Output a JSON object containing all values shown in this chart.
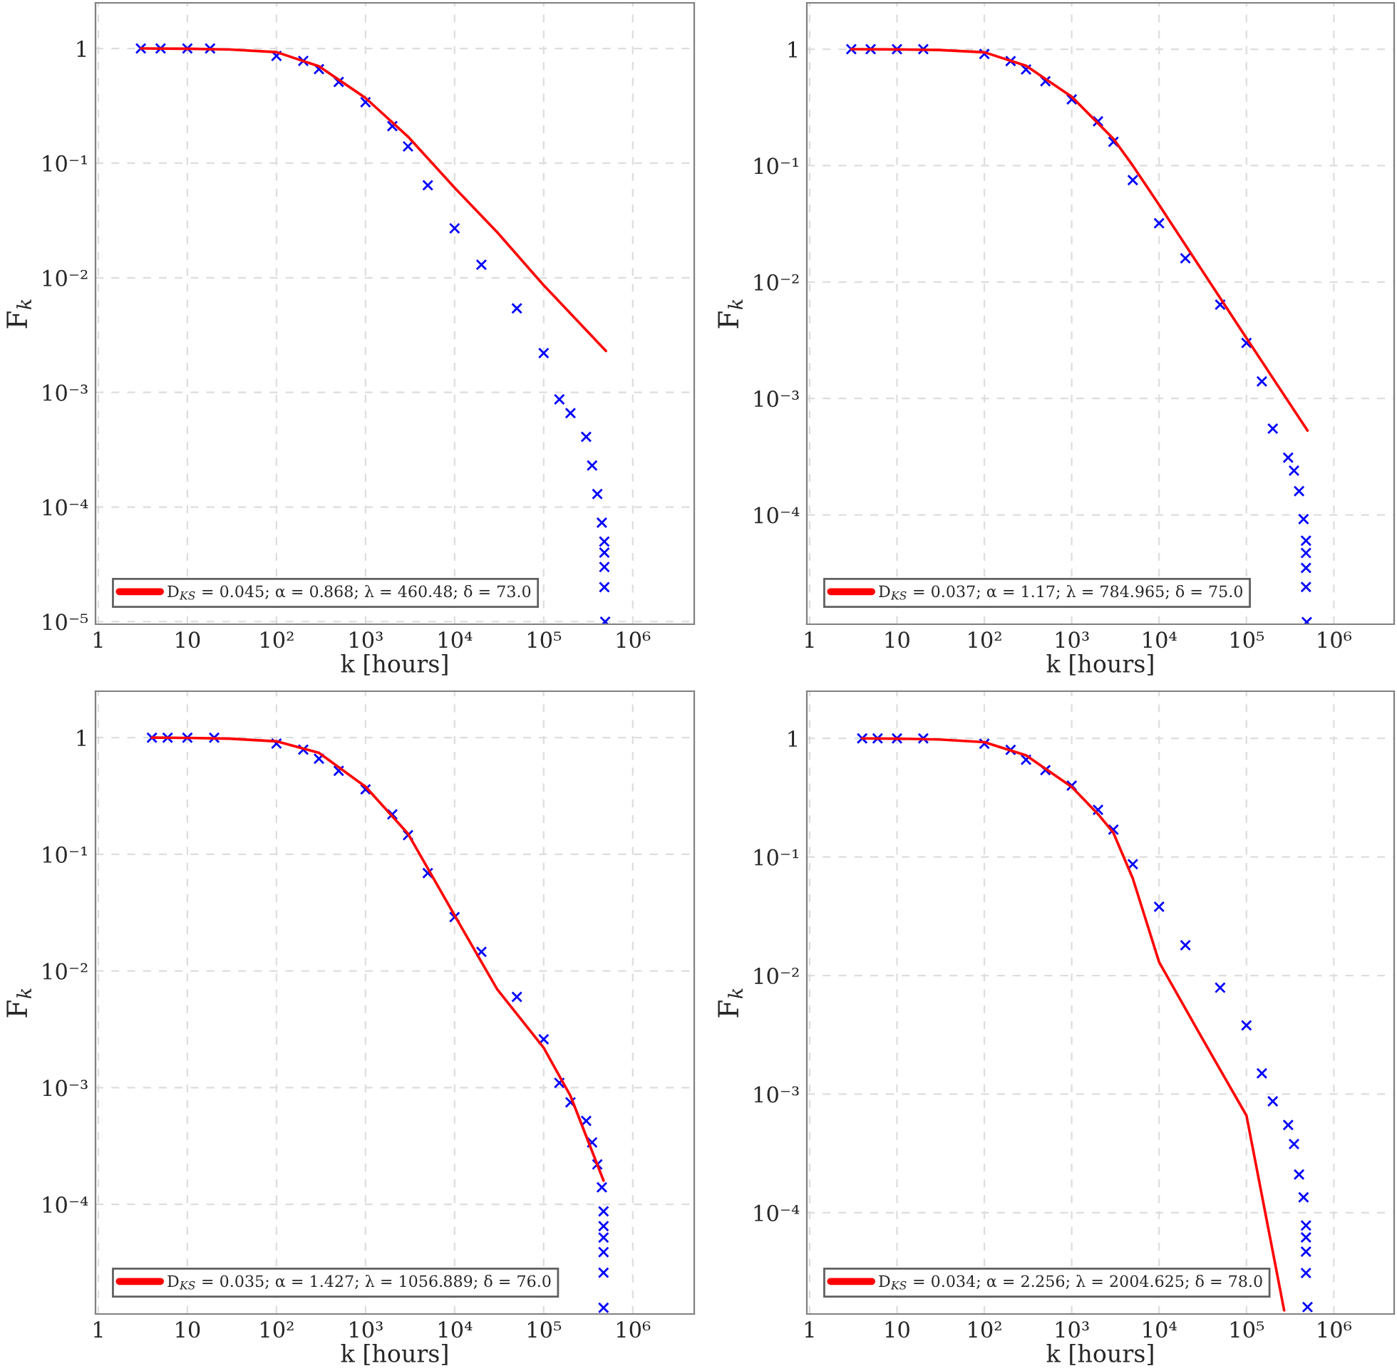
{
  "chart_data": [
    {
      "type": "scatter",
      "log": "xy",
      "grid": true,
      "legend": "bottom left",
      "xlabel": "k [hours]",
      "ylabel": "F$_{k}$",
      "xlim": [
        0.93,
        4900000
      ],
      "ylim": [
        9.5e-06,
        2.5
      ],
      "xticks": [
        1,
        10,
        {
          "value": 100,
          "label": "10²"
        },
        {
          "value": 1000,
          "label": "10³"
        },
        {
          "value": 10000,
          "label": "10⁴"
        },
        {
          "value": 100000,
          "label": "10⁵"
        },
        {
          "value": 1000000,
          "label": "10⁶"
        }
      ],
      "yticks": [
        {
          "value": 1e-05,
          "label": "10⁻⁵"
        },
        {
          "value": 0.0001,
          "label": "10⁻⁴"
        },
        {
          "value": 0.001,
          "label": "10⁻³"
        },
        {
          "value": 0.01,
          "label": "10⁻²"
        },
        {
          "value": 0.1,
          "label": "10⁻¹"
        },
        1
      ],
      "series": [
        {
          "marker": "cross",
          "color": "#0000ff",
          "x": [
            3,
            5,
            10,
            18,
            100,
            200,
            300,
            500,
            1000,
            2000,
            3000,
            5000,
            10000,
            20000,
            50000,
            100000,
            150000,
            200000,
            300000,
            350000,
            400000,
            450000,
            480000,
            480000,
            480000,
            480000,
            490000
          ],
          "values": [
            1,
            1,
            1,
            1,
            0.86,
            0.78,
            0.66,
            0.51,
            0.34,
            0.21,
            0.14,
            0.064,
            0.027,
            0.013,
            0.0054,
            0.0022,
            0.00087,
            0.00066,
            0.00041,
            0.00023,
            0.00013,
            7.3e-05,
            5e-05,
            4e-05,
            3e-05,
            2e-05,
            1e-05
          ]
        },
        {
          "type": "line",
          "marker": "none",
          "line_style": "solid",
          "color": "#ff0000",
          "name": "D$_{KS}$ = 0.045; α = 0.868; λ = 460.48; δ = 73.0",
          "x": [
            3,
            10,
            30,
            100,
            300,
            1000,
            3000,
            10000,
            30000,
            100000,
            500000
          ],
          "values": [
            1,
            0.995,
            0.98,
            0.93,
            0.7,
            0.37,
            0.17,
            0.061,
            0.025,
            0.0086,
            0.0023
          ]
        }
      ]
    },
    {
      "type": "scatter",
      "log": "xy",
      "grid": true,
      "legend": "bottom left",
      "xlabel": "k [hours]",
      "ylabel": "F$_{k}$",
      "xlim": [
        0.93,
        4900000
      ],
      "ylim": [
        1.15e-05,
        2.5
      ],
      "xticks": [
        1,
        10,
        {
          "value": 100,
          "label": "10²"
        },
        {
          "value": 1000,
          "label": "10³"
        },
        {
          "value": 10000,
          "label": "10⁴"
        },
        {
          "value": 100000,
          "label": "10⁵"
        },
        {
          "value": 1000000,
          "label": "10⁶"
        }
      ],
      "yticks": [
        {
          "value": 0.0001,
          "label": "10⁻⁴"
        },
        {
          "value": 0.001,
          "label": "10⁻³"
        },
        {
          "value": 0.01,
          "label": "10⁻²"
        },
        {
          "value": 0.1,
          "label": "10⁻¹"
        },
        1
      ],
      "series": [
        {
          "marker": "cross",
          "color": "#0000ff",
          "x": [
            3,
            5,
            10,
            20,
            100,
            200,
            300,
            500,
            1000,
            2000,
            3000,
            5000,
            10000,
            20000,
            50000,
            100000,
            150000,
            200000,
            300000,
            350000,
            400000,
            450000,
            480000,
            480000,
            480000,
            480000,
            490000
          ],
          "values": [
            1,
            1,
            1,
            1,
            0.91,
            0.79,
            0.67,
            0.53,
            0.37,
            0.24,
            0.16,
            0.075,
            0.032,
            0.016,
            0.0064,
            0.003,
            0.0014,
            0.00055,
            0.00031,
            0.00024,
            0.00016,
            9.2e-05,
            6e-05,
            4.7e-05,
            3.5e-05,
            2.4e-05,
            1.2e-05
          ]
        },
        {
          "type": "line",
          "marker": "none",
          "line_style": "solid",
          "color": "#ff0000",
          "name": "D$_{KS}$ = 0.037; α = 1.17; λ = 784.965; δ = 75.0",
          "x": [
            3,
            10,
            30,
            100,
            300,
            1000,
            3000,
            5000,
            10000,
            100000,
            500000
          ],
          "values": [
            1,
            0.995,
            0.985,
            0.94,
            0.72,
            0.39,
            0.17,
            0.1,
            0.046,
            0.0033,
            0.00053
          ]
        }
      ]
    },
    {
      "type": "scatter",
      "log": "xy",
      "grid": true,
      "legend": "bottom left",
      "xlabel": "k [hours]",
      "ylabel": "F$_{k}$",
      "xlim": [
        0.93,
        4900000
      ],
      "ylim": [
        1.15e-05,
        2.5
      ],
      "xticks": [
        1,
        10,
        {
          "value": 100,
          "label": "10²"
        },
        {
          "value": 1000,
          "label": "10³"
        },
        {
          "value": 10000,
          "label": "10⁴"
        },
        {
          "value": 100000,
          "label": "10⁵"
        },
        {
          "value": 1000000,
          "label": "10⁶"
        }
      ],
      "yticks": [
        {
          "value": 0.0001,
          "label": "10⁻⁴"
        },
        {
          "value": 0.001,
          "label": "10⁻³"
        },
        {
          "value": 0.01,
          "label": "10⁻²"
        },
        {
          "value": 0.1,
          "label": "10⁻¹"
        },
        1
      ],
      "series": [
        {
          "marker": "cross",
          "color": "#0000ff",
          "x": [
            4,
            6,
            10,
            20,
            100,
            200,
            300,
            500,
            1000,
            2000,
            3000,
            5000,
            10000,
            20000,
            50000,
            100000,
            150000,
            200000,
            300000,
            350000,
            400000,
            450000,
            470000,
            470000,
            470000,
            470000,
            470000,
            470000
          ],
          "values": [
            1,
            1,
            1,
            1,
            0.89,
            0.79,
            0.66,
            0.52,
            0.36,
            0.22,
            0.146,
            0.069,
            0.029,
            0.0146,
            0.006,
            0.0026,
            0.0011,
            0.00075,
            0.00052,
            0.00034,
            0.00022,
            0.00014,
            8.7e-05,
            6.5e-05,
            5.2e-05,
            3.9e-05,
            2.6e-05,
            1.3e-05
          ]
        },
        {
          "type": "line",
          "marker": "none",
          "line_style": "solid",
          "color": "#ff0000",
          "name": "D$_{KS}$ = 0.035; α = 1.427; λ = 1056.889; δ = 76.0",
          "x": [
            4,
            10,
            30,
            100,
            300,
            1000,
            3000,
            10000,
            30000,
            100000,
            200000,
            470000
          ],
          "values": [
            1,
            0.995,
            0.98,
            0.93,
            0.74,
            0.38,
            0.15,
            0.03,
            0.007,
            0.0022,
            0.00085,
            0.00016
          ]
        }
      ]
    },
    {
      "type": "scatter",
      "log": "xy",
      "grid": true,
      "legend": "bottom left",
      "xlabel": "k [hours]",
      "ylabel": "F$_{k}$",
      "xlim": [
        0.93,
        4900000
      ],
      "ylim": [
        1.4e-05,
        2.5
      ],
      "xticks": [
        1,
        10,
        {
          "value": 100,
          "label": "10²"
        },
        {
          "value": 1000,
          "label": "10³"
        },
        {
          "value": 10000,
          "label": "10⁴"
        },
        {
          "value": 100000,
          "label": "10⁵"
        },
        {
          "value": 1000000,
          "label": "10⁶"
        }
      ],
      "yticks": [
        {
          "value": 0.0001,
          "label": "10⁻⁴"
        },
        {
          "value": 0.001,
          "label": "10⁻³"
        },
        {
          "value": 0.01,
          "label": "10⁻²"
        },
        {
          "value": 0.1,
          "label": "10⁻¹"
        },
        1
      ],
      "series": [
        {
          "marker": "cross",
          "color": "#0000ff",
          "x": [
            4,
            6,
            10,
            20,
            100,
            200,
            300,
            500,
            1000,
            2000,
            3000,
            5000,
            10000,
            20000,
            50000,
            100000,
            150000,
            200000,
            300000,
            350000,
            400000,
            450000,
            480000,
            480000,
            480000,
            480000,
            500000
          ],
          "values": [
            1,
            1,
            1,
            1,
            0.9,
            0.8,
            0.66,
            0.54,
            0.4,
            0.25,
            0.17,
            0.087,
            0.038,
            0.018,
            0.0079,
            0.0038,
            0.0015,
            0.00087,
            0.00055,
            0.00038,
            0.00021,
            0.000135,
            7.8e-05,
            6.2e-05,
            4.7e-05,
            3.1e-05,
            1.6e-05
          ]
        },
        {
          "type": "line",
          "marker": "none",
          "line_style": "solid",
          "color": "#ff0000",
          "name": "D$_{KS}$ = 0.034; α = 2.256; λ = 2004.625; δ = 78.0",
          "x": [
            4,
            10,
            30,
            100,
            300,
            1000,
            2000,
            3000,
            5000,
            10000,
            30000,
            100000,
            270000
          ],
          "values": [
            1,
            0.995,
            0.98,
            0.93,
            0.72,
            0.39,
            0.23,
            0.16,
            0.066,
            0.013,
            0.0031,
            0.00066,
            1.5e-05
          ]
        }
      ]
    }
  ]
}
